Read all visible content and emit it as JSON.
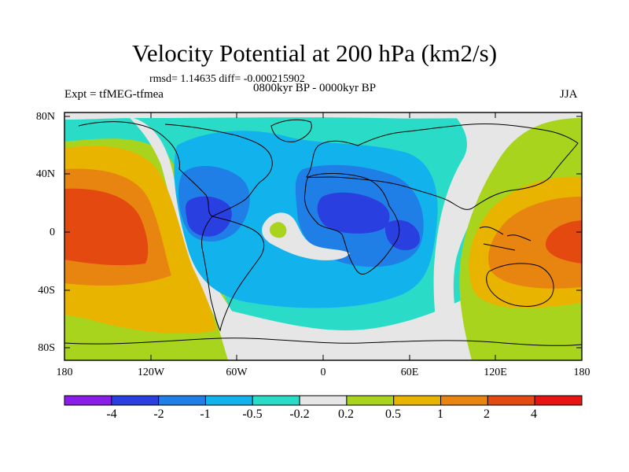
{
  "title": "Velocity Potential at 200 hPa (km2/s)",
  "stats": "rmsd= 1.14635 diff= -0.000215902",
  "experiment": "Expt = tfMEG-tfmea",
  "period": "0800kyr BP - 0000kyr BP",
  "season": "JJA",
  "lat_labels": [
    "80N",
    "40N",
    "0",
    "40S",
    "80S"
  ],
  "lon_labels": [
    "180",
    "120W",
    "60W",
    "0",
    "60E",
    "120E",
    "180"
  ],
  "colorbar": {
    "labels": [
      "-4",
      "-2",
      "-1",
      "-0.5",
      "-0.2",
      "0.2",
      "0.5",
      "1",
      "2",
      "4"
    ],
    "colors": [
      "#8a1ee8",
      "#2a3fe0",
      "#1f7fe6",
      "#12b3ec",
      "#2adcc8",
      "#e6e6e6",
      "#a9d41e",
      "#e8b400",
      "#e88410",
      "#e44a10",
      "#e81414"
    ]
  },
  "field_colors": {
    "strong_neg": "#2a3fe0",
    "mid_neg": "#1f7fe6",
    "light_neg": "#12b3ec",
    "weak_neg": "#2adcc8",
    "neutral": "#e6e6e6",
    "weak_pos": "#a9d41e",
    "light_pos": "#e8b400",
    "mid_pos": "#e88410",
    "strong_pos": "#e44a10"
  }
}
